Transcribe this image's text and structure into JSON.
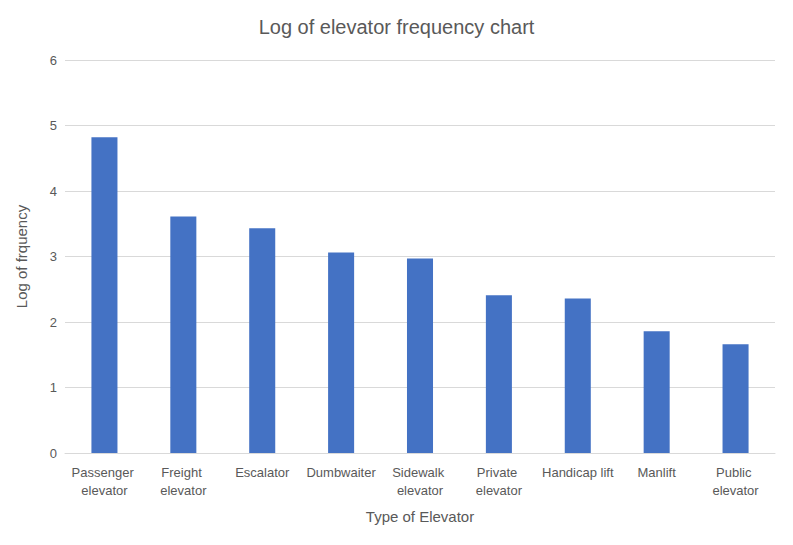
{
  "chart_data": {
    "type": "bar",
    "title": "Log of elevator frequency chart",
    "x_label": "Type of Elevator",
    "y_label": "Log of frquency",
    "categories": [
      "Passenger elevator",
      "Freight elevator",
      "Escalator",
      "Dumbwaiter",
      "Sidewalk elevator",
      "Private elevator",
      "Handicap lift",
      "Manlift",
      "Public elevator"
    ],
    "values": [
      4.82,
      3.61,
      3.43,
      3.06,
      2.97,
      2.41,
      2.36,
      1.86,
      1.66
    ],
    "color": "#4472c4",
    "ylim": [
      0,
      6
    ],
    "yticks": [
      0,
      1,
      2,
      3,
      4,
      5,
      6
    ],
    "grid": true
  }
}
